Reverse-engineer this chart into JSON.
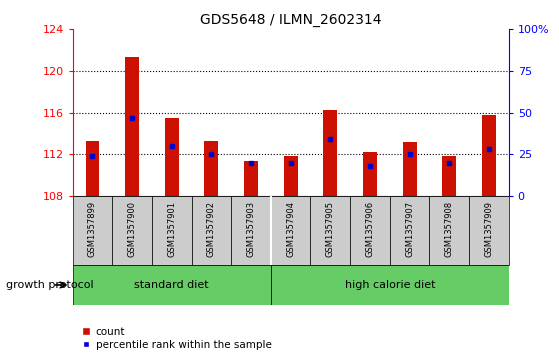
{
  "title": "GDS5648 / ILMN_2602314",
  "samples": [
    "GSM1357899",
    "GSM1357900",
    "GSM1357901",
    "GSM1357902",
    "GSM1357903",
    "GSM1357904",
    "GSM1357905",
    "GSM1357906",
    "GSM1357907",
    "GSM1357908",
    "GSM1357909"
  ],
  "count_values": [
    113.3,
    121.3,
    115.5,
    113.3,
    111.4,
    111.8,
    116.2,
    112.2,
    113.2,
    111.8,
    115.8
  ],
  "percentile_values": [
    24,
    47,
    30,
    25,
    20,
    20,
    34,
    18,
    25,
    20,
    28
  ],
  "ymin": 108,
  "ymax": 124,
  "yticks": [
    108,
    112,
    116,
    120,
    124
  ],
  "right_yticks": [
    0,
    25,
    50,
    75,
    100
  ],
  "right_yticklabels": [
    "0",
    "25",
    "50",
    "75",
    "100%"
  ],
  "bar_color": "#cc1100",
  "percentile_color": "#0000cc",
  "standard_diet_label": "standard diet",
  "high_calorie_label": "high calorie diet",
  "group_label": "growth protocol",
  "green_color": "#66cc66",
  "bar_bg_color": "#cccccc",
  "legend_count_label": "count",
  "legend_percentile_label": "percentile rank within the sample",
  "bar_width": 0.35
}
